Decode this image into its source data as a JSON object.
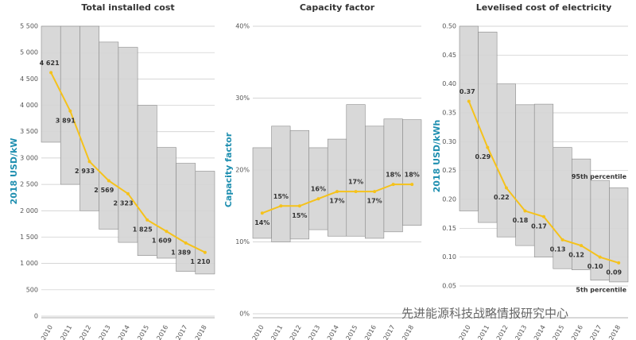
{
  "chart_data": [
    {
      "type": "line",
      "title": "Total installed cost",
      "y_label": "2018 USD/kW",
      "categories": [
        "2010",
        "2011",
        "2012",
        "2013",
        "2014",
        "2015",
        "2016",
        "2017",
        "2018"
      ],
      "values": [
        4621,
        3891,
        2933,
        2569,
        2323,
        1825,
        1609,
        1389,
        1210
      ],
      "value_labels": [
        "4 621",
        "3 891",
        "2 933",
        "2 569",
        "2 323",
        "1 825",
        "1 609",
        "1 389",
        "1 210"
      ],
      "band": {
        "upper": [
          5500,
          5500,
          5500,
          5200,
          5100,
          4000,
          3200,
          2900,
          2750
        ],
        "lower": [
          3300,
          2500,
          2000,
          1650,
          1400,
          1150,
          1100,
          850,
          800
        ]
      },
      "color": "#f5c21b",
      "band_color": "#d4d4d4",
      "ylim": [
        0,
        5500
      ],
      "yticks": [
        0,
        500,
        {
          "value": 1000,
          "label": "1 000"
        },
        {
          "value": 1500,
          "label": "1 500"
        },
        {
          "value": 2000,
          "label": "2 000"
        },
        {
          "value": 2500,
          "label": "2 500"
        },
        {
          "value": 3000,
          "label": "3 000"
        },
        {
          "value": 3500,
          "label": "3 500"
        },
        {
          "value": 4000,
          "label": "4 000"
        },
        {
          "value": 4500,
          "label": "4 500"
        },
        {
          "value": 5000,
          "label": "5 000"
        },
        {
          "value": 5500,
          "label": "5 500"
        }
      ],
      "grid": true
    },
    {
      "type": "line",
      "title": "Capacity factor",
      "y_label": "Capacity factor",
      "categories": [
        "2010",
        "2011",
        "2012",
        "2013",
        "2014",
        "2015",
        "2016",
        "2017",
        "2018"
      ],
      "values": [
        14,
        15,
        15,
        16,
        17,
        17,
        17,
        18,
        18
      ],
      "value_labels": [
        "14%",
        "15%",
        "15%",
        "16%",
        "17%",
        "17%",
        "17%",
        "18%",
        "18%"
      ],
      "band": {
        "upper": [
          23.1,
          26.1,
          25.5,
          23.1,
          24.3,
          29.1,
          26.1,
          27.1,
          27
        ],
        "lower": [
          10.5,
          10,
          10.4,
          11.7,
          10.8,
          10.8,
          10.5,
          11.4,
          12.3
        ]
      },
      "color": "#f5c21b",
      "band_color": "#d4d4d4",
      "ylim": [
        0,
        40
      ],
      "yticks": [
        {
          "value": 0,
          "label": "0%"
        },
        {
          "value": 10,
          "label": "10%"
        },
        {
          "value": 20,
          "label": "20%"
        },
        {
          "value": 30,
          "label": "30%"
        },
        {
          "value": 40,
          "label": "40%"
        }
      ],
      "grid": true
    },
    {
      "type": "line",
      "title": "Levelised cost of electricity",
      "y_label": "2018 USD/kWh",
      "categories": [
        "2010",
        "2011",
        "2012",
        "2013",
        "2014",
        "2015",
        "2016",
        "2017",
        "2018"
      ],
      "values": [
        0.37,
        0.29,
        0.22,
        0.18,
        0.17,
        0.13,
        0.12,
        0.1,
        0.09
      ],
      "value_labels": [
        "0.37",
        "0.29",
        "0.22",
        "0.18",
        "0.17",
        "0.13",
        "0.12",
        "0.10",
        "0.09"
      ],
      "band": {
        "upper": [
          0.5,
          0.49,
          0.4,
          0.364,
          0.365,
          0.29,
          0.27,
          0.233,
          0.22
        ],
        "lower": [
          0.18,
          0.16,
          0.135,
          0.12,
          0.1,
          0.08,
          0.078,
          0.06,
          0.057
        ]
      },
      "color": "#f5c21b",
      "band_color": "#d4d4d4",
      "ylim": [
        0.05,
        0.5
      ],
      "yticks": [
        0.05,
        {
          "value": 0.1,
          "label": "0.10"
        },
        0.15,
        {
          "value": 0.2,
          "label": "0.20"
        },
        0.25,
        {
          "value": 0.3,
          "label": "0.30"
        },
        0.35,
        {
          "value": 0.4,
          "label": "0.40"
        },
        0.45,
        {
          "value": 0.5,
          "label": "0.50"
        }
      ],
      "annotations": [
        "95th percentile",
        "5th percentile"
      ],
      "grid": true
    }
  ],
  "watermark": "先进能源科技战略情报研究中心"
}
